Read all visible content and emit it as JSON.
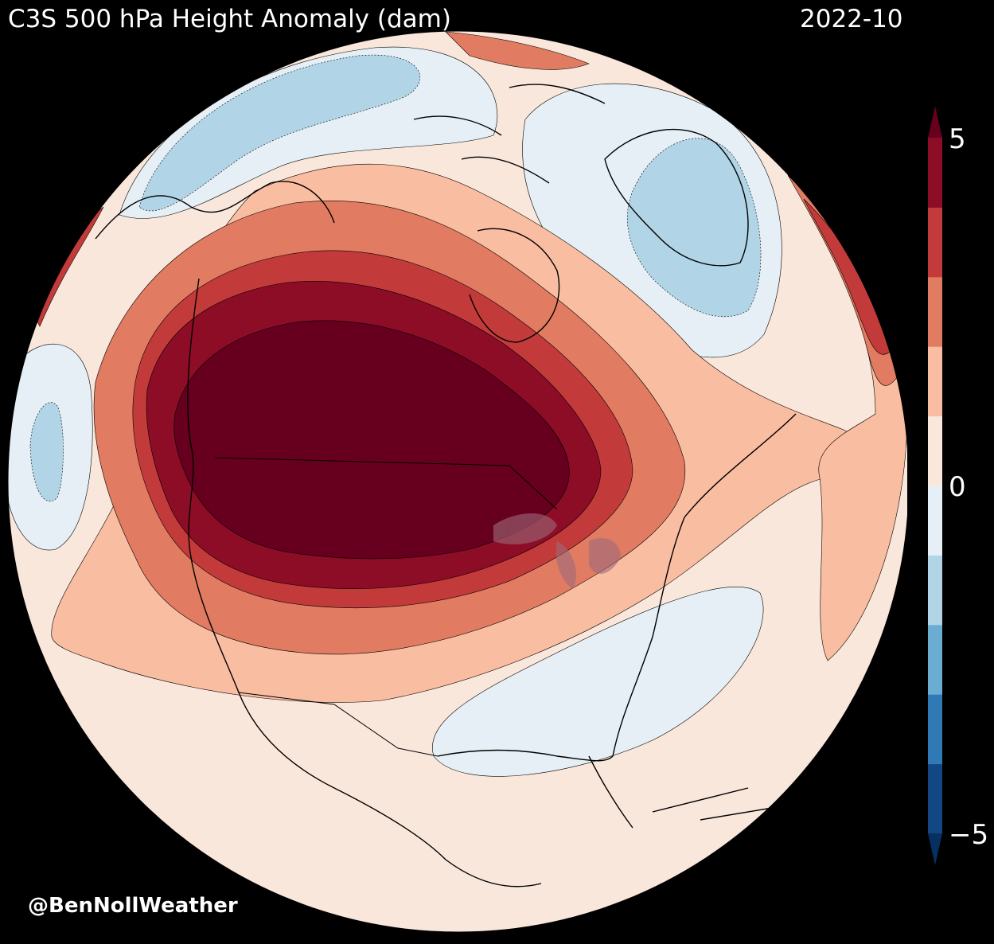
{
  "title": "C3S 500 hPa Height Anomaly (dam)",
  "date": "2022-10",
  "credit": "@BenNollWeather",
  "colorbar": {
    "ticks": [
      "5",
      "0",
      "−5"
    ],
    "tick_values": [
      5,
      0,
      -5
    ],
    "min": -5,
    "max": 5,
    "step": 1,
    "extend": "both",
    "colors": [
      "#124783",
      "#2f79b5",
      "#6bacd1",
      "#b1d5e7",
      "#e5eff5",
      "#fae7dc",
      "#f9bda1",
      "#e17b61",
      "#c23b3a",
      "#8c0d25"
    ],
    "extend_low": "#053061",
    "extend_high": "#67001f"
  },
  "colors": {
    "background": "#000000",
    "text": "#ffffff",
    "coastline": "#000000",
    "anomaly_max": "#67001f"
  }
}
